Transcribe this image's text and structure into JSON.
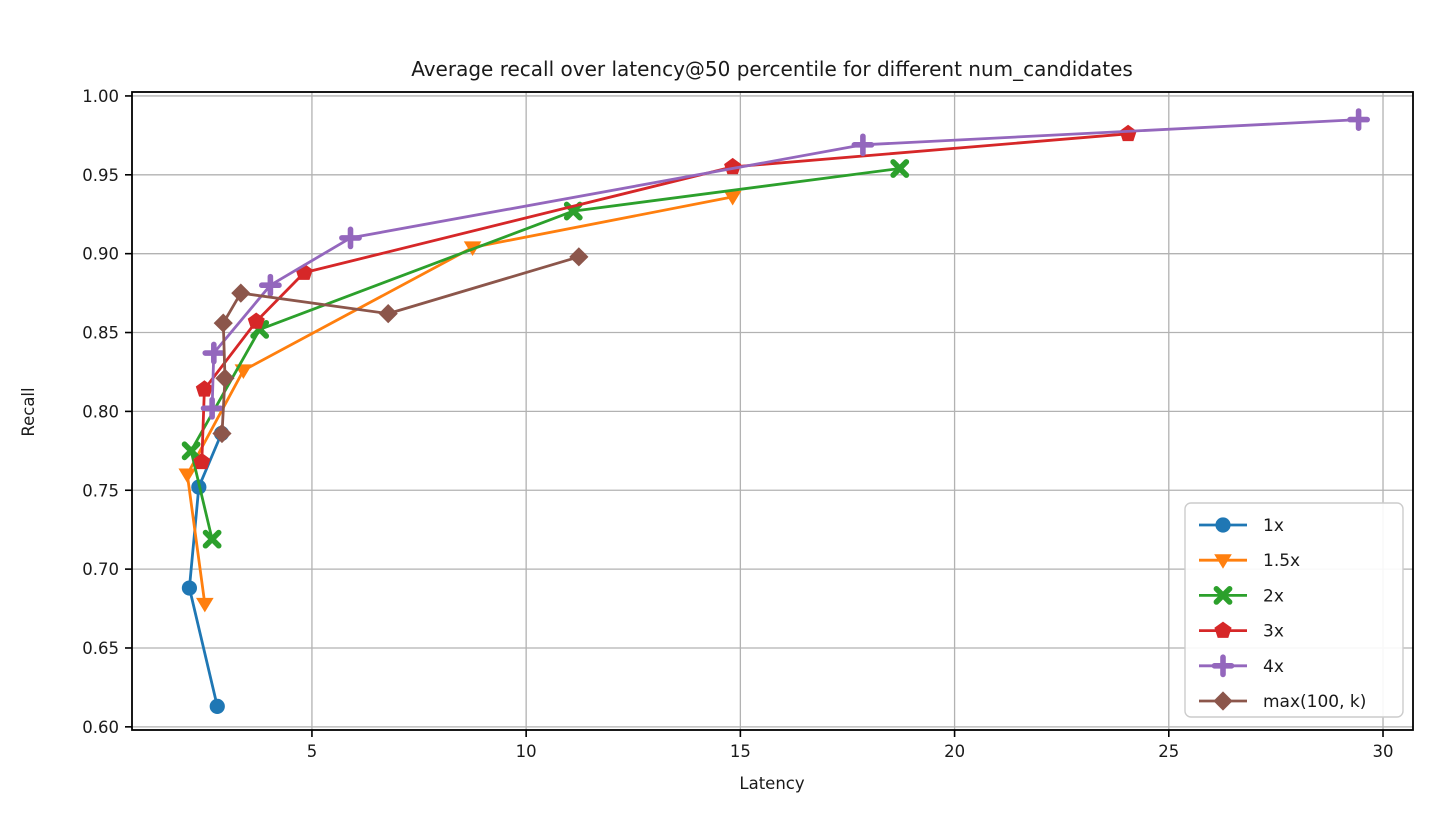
{
  "figure": {
    "title": "Average recall over latency@50 percentile for different num_candidates",
    "xlabel": "Latency",
    "ylabel": "Recall",
    "background_color": "#ffffff",
    "grid_color": "#b2b2b2",
    "spine_color": "#000000",
    "text_color": "#1a1a1a"
  },
  "legend": {
    "position": "lower right",
    "entries": [
      {
        "label": "1x",
        "marker": "circle-icon",
        "color": "#1f77b4"
      },
      {
        "label": "1.5x",
        "marker": "triangle-down-icon",
        "color": "#ff7f0e"
      },
      {
        "label": "2x",
        "marker": "x-icon",
        "color": "#2ca02c"
      },
      {
        "label": "3x",
        "marker": "pentagon-icon",
        "color": "#d62728"
      },
      {
        "label": "4x",
        "marker": "plus-icon",
        "color": "#9467bd"
      },
      {
        "label": "max(100, k)",
        "marker": "diamond-icon",
        "color": "#8c564b"
      }
    ]
  },
  "chart_data": {
    "type": "line",
    "title": "Average recall over latency@50 percentile for different num_candidates",
    "xlabel": "Latency",
    "ylabel": "Recall",
    "xlim": [
      0.8,
      30.7
    ],
    "ylim": [
      0.598,
      1.0025
    ],
    "x_ticks": [
      5,
      10,
      15,
      20,
      25,
      30
    ],
    "x_tick_labels": [
      "5",
      "10",
      "15",
      "20",
      "25",
      "30"
    ],
    "y_ticks": [
      0.6,
      0.65,
      0.7,
      0.75,
      0.8,
      0.85,
      0.9,
      0.95,
      1.0
    ],
    "y_tick_labels": [
      "0.60",
      "0.65",
      "0.70",
      "0.75",
      "0.80",
      "0.85",
      "0.90",
      "0.95",
      "1.00"
    ],
    "grid": true,
    "legend_position": "lower right",
    "series": [
      {
        "name": "1x",
        "color": "#1f77b4",
        "marker": "circle",
        "points": [
          [
            2.79,
            0.613
          ],
          [
            2.14,
            0.688
          ],
          [
            2.36,
            0.752
          ],
          [
            2.89,
            0.786
          ]
        ]
      },
      {
        "name": "1.5x",
        "color": "#ff7f0e",
        "marker": "triangle-down",
        "points": [
          [
            2.5,
            0.678
          ],
          [
            2.09,
            0.76
          ],
          [
            3.4,
            0.826
          ],
          [
            8.75,
            0.904
          ],
          [
            14.82,
            0.936
          ]
        ]
      },
      {
        "name": "2x",
        "color": "#2ca02c",
        "marker": "x",
        "points": [
          [
            2.67,
            0.719
          ],
          [
            2.18,
            0.775
          ],
          [
            3.78,
            0.852
          ],
          [
            11.1,
            0.927
          ],
          [
            18.72,
            0.954
          ]
        ]
      },
      {
        "name": "3x",
        "color": "#d62728",
        "marker": "pentagon",
        "points": [
          [
            2.43,
            0.768
          ],
          [
            2.49,
            0.814
          ],
          [
            3.7,
            0.857
          ],
          [
            4.82,
            0.888
          ],
          [
            14.82,
            0.955
          ],
          [
            24.05,
            0.976
          ]
        ]
      },
      {
        "name": "4x",
        "color": "#9467bd",
        "marker": "plus",
        "points": [
          [
            2.67,
            0.802
          ],
          [
            2.71,
            0.837
          ],
          [
            4.03,
            0.88
          ],
          [
            5.9,
            0.91
          ],
          [
            17.86,
            0.969
          ],
          [
            29.43,
            0.985
          ]
        ]
      },
      {
        "name": "max(100, k)",
        "color": "#8c564b",
        "marker": "diamond",
        "points": [
          [
            2.9,
            0.786
          ],
          [
            2.97,
            0.821
          ],
          [
            2.93,
            0.856
          ],
          [
            3.34,
            0.875
          ],
          [
            6.78,
            0.862
          ],
          [
            11.23,
            0.898
          ]
        ]
      }
    ]
  }
}
